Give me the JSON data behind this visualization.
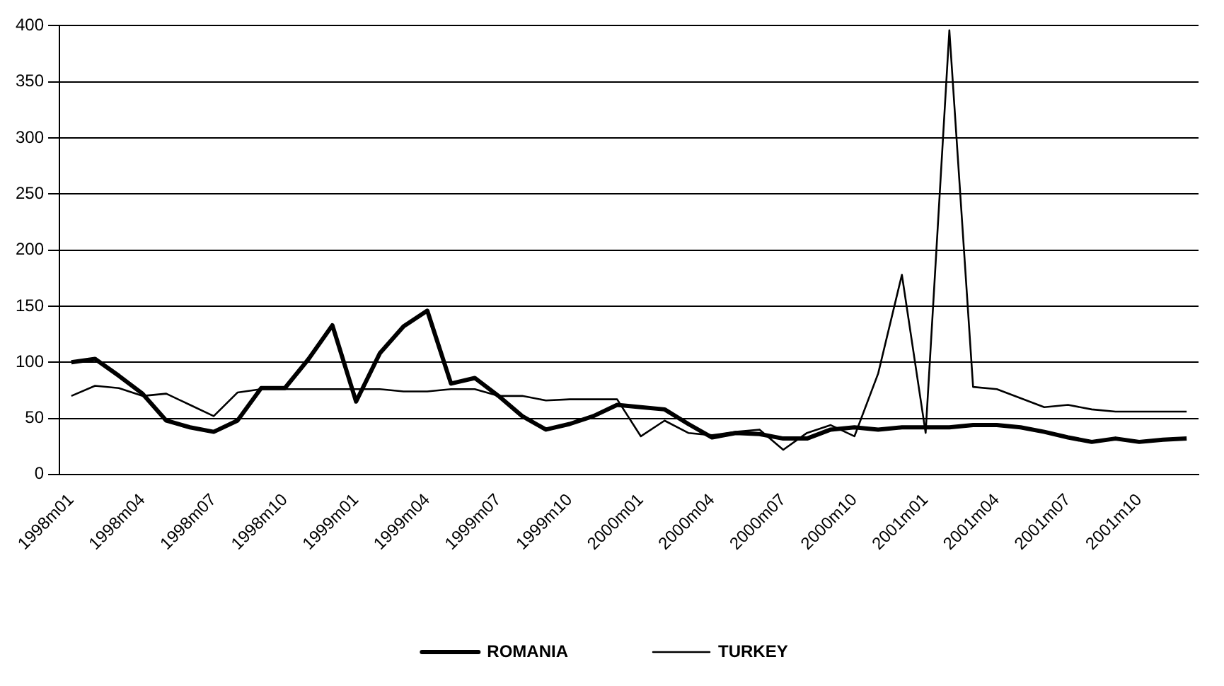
{
  "chart_data": {
    "type": "line",
    "categories": [
      "1998m01",
      null,
      null,
      "1998m04",
      null,
      null,
      "1998m07",
      null,
      null,
      "1998m10",
      null,
      null,
      "1999m01",
      null,
      null,
      "1999m04",
      null,
      null,
      "1999m07",
      null,
      null,
      "1999m10",
      null,
      null,
      "2000m01",
      null,
      null,
      "2000m04",
      null,
      null,
      "2000m07",
      null,
      null,
      "2000m10",
      null,
      null,
      "2001m01",
      null,
      null,
      "2001m04",
      null,
      null,
      "2001m07",
      null,
      null,
      "2001m10",
      null,
      null
    ],
    "series": [
      {
        "name": "ROMANIA",
        "color": "#000000",
        "values": [
          100,
          103,
          88,
          72,
          48,
          42,
          38,
          48,
          77,
          77,
          103,
          133,
          65,
          108,
          132,
          146,
          81,
          86,
          70,
          52,
          40,
          45,
          52,
          62,
          60,
          58,
          45,
          33,
          37,
          36,
          32,
          32,
          40,
          42,
          40,
          42,
          42,
          42,
          44,
          44,
          42,
          38,
          33,
          29,
          32,
          29,
          31,
          32
        ]
      },
      {
        "name": "TURKEY",
        "color": "#000000",
        "values": [
          70,
          79,
          77,
          70,
          72,
          62,
          52,
          73,
          76,
          76,
          76,
          76,
          76,
          76,
          74,
          74,
          76,
          76,
          70,
          70,
          66,
          67,
          67,
          67,
          34,
          48,
          37,
          35,
          38,
          40,
          22,
          37,
          44,
          34,
          90,
          178,
          37,
          396,
          78,
          76,
          68,
          60,
          62,
          58,
          56,
          56,
          56,
          56
        ]
      }
    ],
    "ylim": [
      0,
      400
    ],
    "yticks": [
      0,
      50,
      100,
      150,
      200,
      250,
      300,
      350,
      400
    ],
    "grid": "y",
    "legend": "bottom",
    "marker": "none",
    "line_style": "solid"
  }
}
